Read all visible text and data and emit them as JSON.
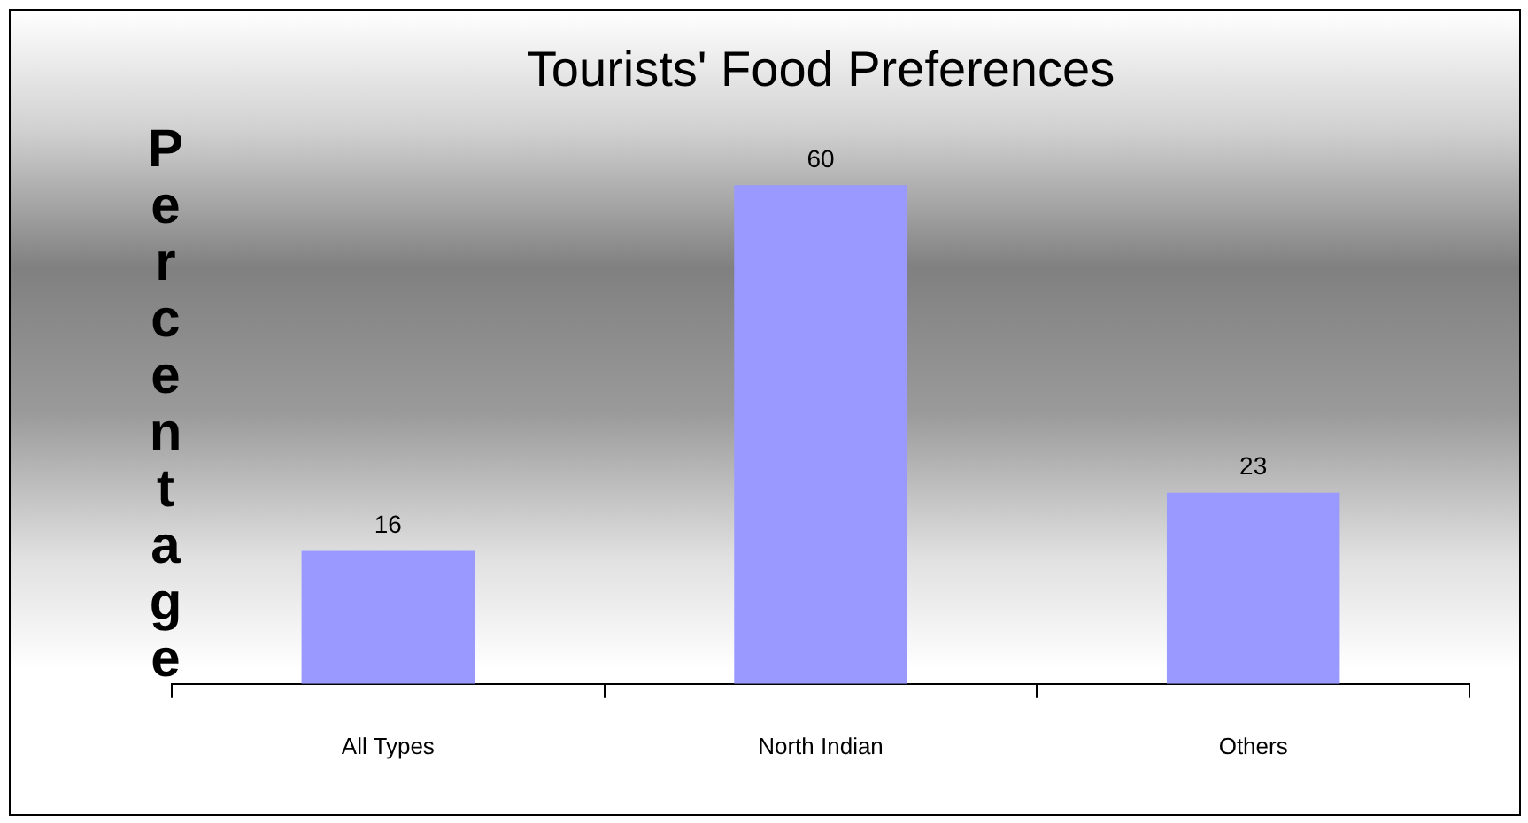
{
  "chart_data": {
    "type": "bar",
    "title": "Tourists' Food Preferences",
    "ylabel": "Percentage",
    "categories": [
      "All Types",
      "North Indian",
      "Others"
    ],
    "values": [
      16,
      60,
      23
    ],
    "color": "#9999ff",
    "data_labels": true,
    "tick_labels": "x",
    "grid": false,
    "legend": false
  }
}
